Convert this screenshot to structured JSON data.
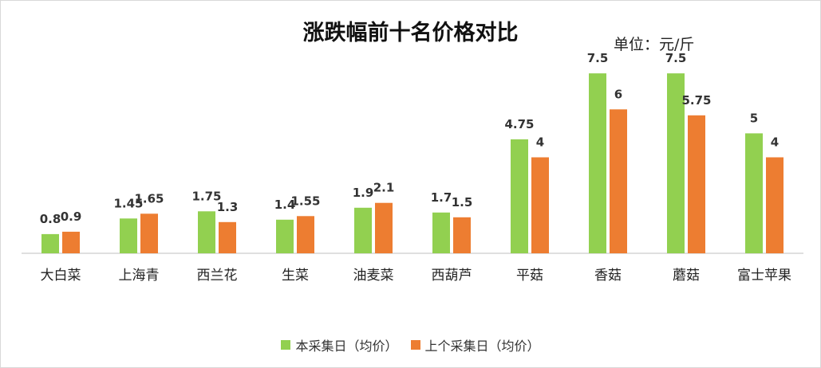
{
  "chart_data": {
    "type": "bar",
    "title": "涨跌幅前十名价格对比",
    "unit_label": "单位：元/斤",
    "categories": [
      "大白菜",
      "上海青",
      "西兰花",
      "生菜",
      "油麦菜",
      "西葫芦",
      "平菇",
      "香菇",
      "蘑菇",
      "富士苹果"
    ],
    "series": [
      {
        "name": "本采集日（均价）",
        "color": "#92d050",
        "values": [
          0.8,
          1.45,
          1.75,
          1.4,
          1.9,
          1.7,
          4.75,
          7.5,
          7.5,
          5
        ]
      },
      {
        "name": "上个采集日（均价）",
        "color": "#ed7d31",
        "values": [
          0.9,
          1.65,
          1.3,
          1.55,
          2.1,
          1.5,
          4,
          6,
          5.75,
          4
        ]
      }
    ],
    "ylim": [
      0,
      8.2
    ],
    "grid": false,
    "legend_position": "bottom"
  }
}
